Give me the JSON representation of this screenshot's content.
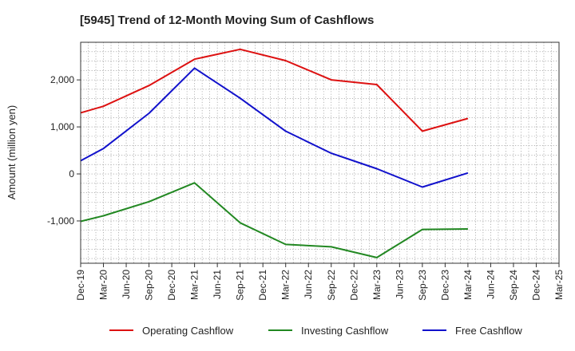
{
  "chart_data": {
    "type": "line",
    "title": "[5945]  Trend of 12-Month Moving Sum of Cashflows",
    "xlabel": "",
    "ylabel": "Amount (million yen)",
    "x": [
      "Dec-19",
      "Mar-20",
      "Jun-20",
      "Sep-20",
      "Dec-20",
      "Mar-21",
      "Jun-21",
      "Sep-21",
      "Dec-21",
      "Mar-22",
      "Jun-22",
      "Sep-22",
      "Dec-22",
      "Mar-23",
      "Jun-23",
      "Sep-23",
      "Dec-23",
      "Mar-24",
      "Jun-24",
      "Sep-24",
      "Dec-24",
      "Mar-25"
    ],
    "ylim": [
      -1900,
      2800
    ],
    "yticks": [
      -1000,
      0,
      1000,
      2000
    ],
    "ytick_labels": [
      "-1,000",
      "0",
      "1,000",
      "2,000"
    ],
    "grid": true,
    "legend_position": "bottom",
    "series": [
      {
        "name": "Operating Cashflow",
        "color": "#dd1111",
        "values": [
          1300,
          1440,
          null,
          1880,
          null,
          2440,
          null,
          2650,
          null,
          2410,
          null,
          2000,
          null,
          1900,
          null,
          910,
          null,
          1180,
          null,
          null,
          null,
          null
        ]
      },
      {
        "name": "Investing Cashflow",
        "color": "#228822",
        "values": [
          -1010,
          -890,
          null,
          -590,
          null,
          -190,
          null,
          -1040,
          null,
          -1500,
          null,
          -1550,
          null,
          -1780,
          null,
          -1180,
          null,
          -1170,
          null,
          null,
          null,
          null
        ]
      },
      {
        "name": "Free Cashflow",
        "color": "#1111cc",
        "values": [
          280,
          540,
          null,
          1290,
          null,
          2250,
          null,
          1610,
          null,
          910,
          null,
          440,
          null,
          110,
          null,
          -280,
          null,
          20,
          null,
          null,
          null,
          null
        ]
      }
    ]
  }
}
